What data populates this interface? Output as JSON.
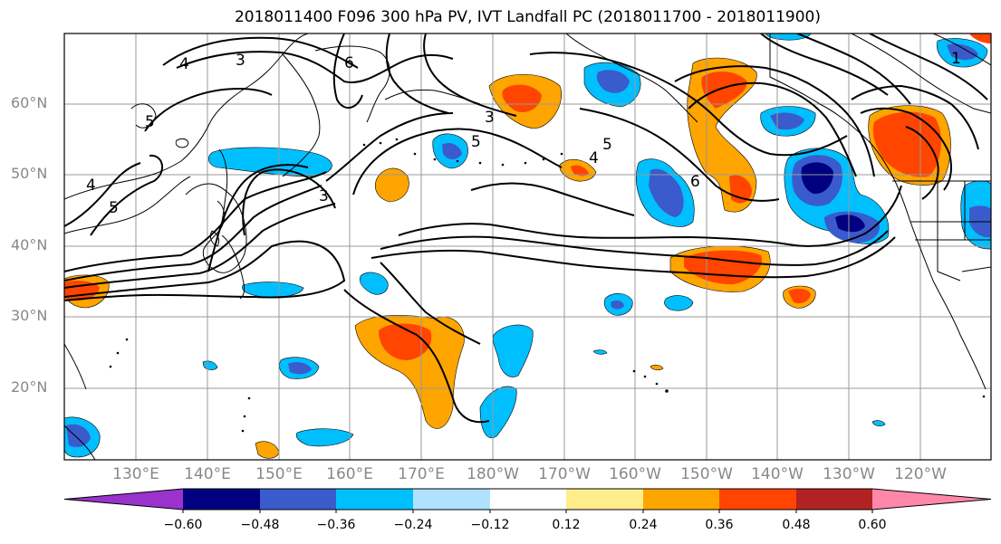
{
  "title": "2018011400 F096 300 hPa PV, IVT Landfall PC (2018011700 - 2018011900)",
  "lat_labels": [
    "60°N",
    "50°N",
    "40°N",
    "30°N",
    "20°N"
  ],
  "lon_labels": [
    "130°E",
    "140°E",
    "150°E",
    "160°E",
    "170°E",
    "180°W",
    "170°W",
    "160°W",
    "150°W",
    "140°W",
    "130°W",
    "120°W"
  ],
  "colorbar": {
    "tick_labels": [
      "−0.60",
      "−0.48",
      "−0.36",
      "−0.24",
      "−0.12",
      "0.12",
      "0.24",
      "0.36",
      "0.48",
      "0.60"
    ],
    "colors": [
      "#9933cc",
      "#000080",
      "#3a5bcc",
      "#00bfff",
      "#b0e2ff",
      "#ffffff",
      "#ffec8b",
      "#ffa500",
      "#ff4500",
      "#b22222",
      "#ff88aa"
    ]
  },
  "contour_labels": [
    "4",
    "3",
    "6",
    "5",
    "3",
    "4",
    "5",
    "3",
    "5",
    "4",
    "6",
    "5",
    "1"
  ]
}
